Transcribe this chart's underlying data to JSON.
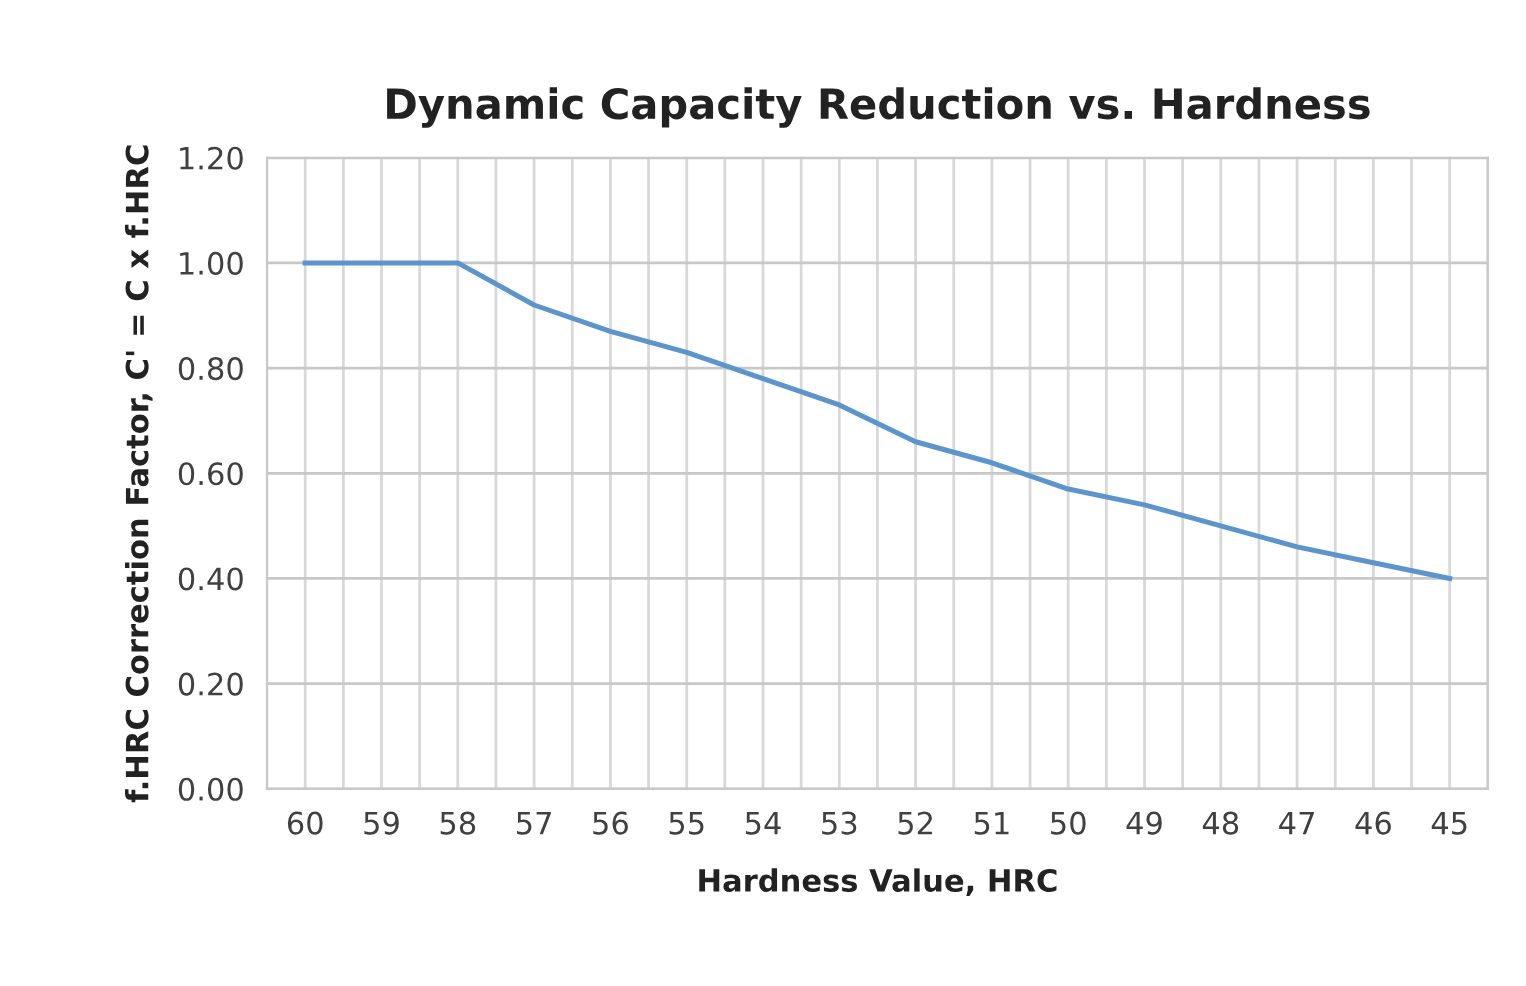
{
  "chart_data": {
    "type": "line",
    "title": "Dynamic Capacity Reduction vs. Hardness",
    "xlabel": "Hardness Value, HRC",
    "ylabel": "f.HRC Correction Factor, C' = C x f.HRC",
    "categories": [
      "60",
      "59",
      "58",
      "57",
      "56",
      "55",
      "54",
      "53",
      "52",
      "51",
      "50",
      "49",
      "48",
      "47",
      "46",
      "45"
    ],
    "series": [
      {
        "color": "#5b95cc",
        "values": [
          1.0,
          1.0,
          1.0,
          0.92,
          0.87,
          0.83,
          0.78,
          0.73,
          0.66,
          0.62,
          0.57,
          0.54,
          0.5,
          0.46,
          0.43,
          0.4
        ]
      }
    ],
    "ylim": [
      0,
      1.2
    ],
    "yticks": [
      {
        "value": 0,
        "label": "0.00"
      },
      {
        "value": 0.2,
        "label": "0.20"
      },
      {
        "value": 0.4,
        "label": "0.40"
      },
      {
        "value": 0.6,
        "label": "0.60"
      },
      {
        "value": 0.8,
        "label": "0.80"
      },
      {
        "value": 1.0,
        "label": "1.00"
      },
      {
        "value": 1.2,
        "label": "1.20"
      }
    ],
    "grid": true,
    "legend": false,
    "marker": "none",
    "line_style": "solid"
  }
}
